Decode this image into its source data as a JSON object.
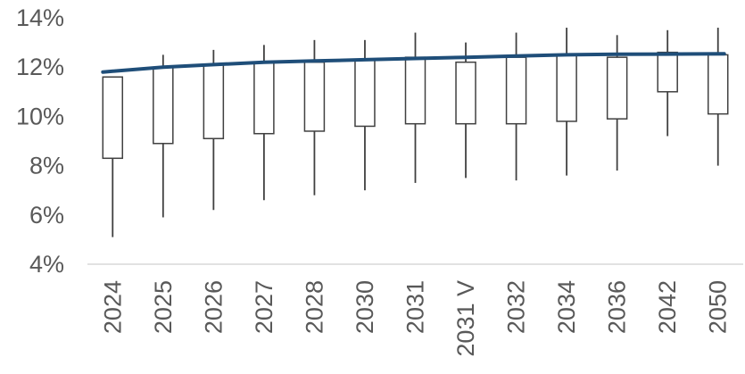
{
  "chart_data": {
    "type": "box",
    "title": "",
    "xlabel": "",
    "ylabel": "",
    "ylim": [
      0.04,
      0.14
    ],
    "y_tick_labels": [
      "4%",
      "6%",
      "8%",
      "10%",
      "12%",
      "14%"
    ],
    "y_ticks": [
      0.04,
      0.06,
      0.08,
      0.1,
      0.12,
      0.14
    ],
    "grid": false,
    "legend": "none",
    "categories": [
      "2024",
      "2025",
      "2026",
      "2027",
      "2028",
      "2030",
      "2031",
      "2031 V",
      "2032",
      "2034",
      "2036",
      "2042",
      "2050"
    ],
    "boxes": [
      {
        "min": 0.051,
        "q1": 0.083,
        "q3": 0.116,
        "max": 0.116
      },
      {
        "min": 0.059,
        "q1": 0.089,
        "q3": 0.12,
        "max": 0.125
      },
      {
        "min": 0.062,
        "q1": 0.091,
        "q3": 0.121,
        "max": 0.127
      },
      {
        "min": 0.066,
        "q1": 0.093,
        "q3": 0.122,
        "max": 0.129
      },
      {
        "min": 0.068,
        "q1": 0.094,
        "q3": 0.122,
        "max": 0.131
      },
      {
        "min": 0.07,
        "q1": 0.096,
        "q3": 0.123,
        "max": 0.131
      },
      {
        "min": 0.073,
        "q1": 0.097,
        "q3": 0.124,
        "max": 0.134
      },
      {
        "min": 0.075,
        "q1": 0.097,
        "q3": 0.122,
        "max": 0.13
      },
      {
        "min": 0.074,
        "q1": 0.097,
        "q3": 0.124,
        "max": 0.134
      },
      {
        "min": 0.076,
        "q1": 0.098,
        "q3": 0.125,
        "max": 0.136
      },
      {
        "min": 0.078,
        "q1": 0.099,
        "q3": 0.124,
        "max": 0.133
      },
      {
        "min": 0.092,
        "q1": 0.11,
        "q3": 0.126,
        "max": 0.135
      },
      {
        "min": 0.08,
        "q1": 0.101,
        "q3": 0.125,
        "max": 0.136
      }
    ],
    "series": [
      {
        "type": "line",
        "values": [
          0.118,
          0.12,
          0.121,
          0.122,
          0.1225,
          0.123,
          0.1235,
          0.124,
          0.1245,
          0.125,
          0.1252,
          0.1253,
          0.1254
        ]
      }
    ],
    "colors": {
      "line": "#1f4e79",
      "box_stroke": "#404040",
      "axis": "#d9d9d9",
      "tick_text": "#595959"
    }
  }
}
